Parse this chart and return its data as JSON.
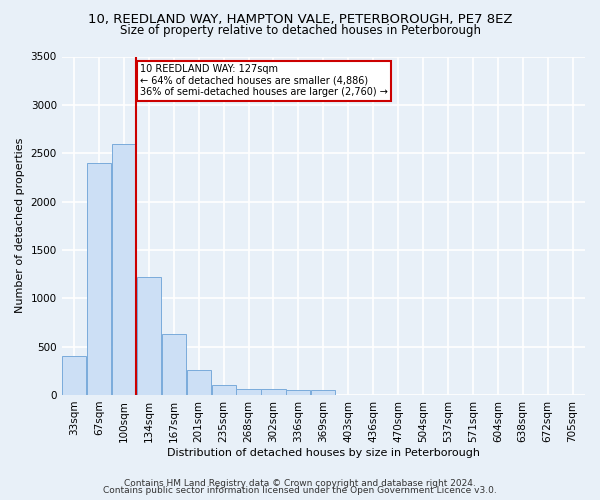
{
  "title_line1": "10, REEDLAND WAY, HAMPTON VALE, PETERBOROUGH, PE7 8EZ",
  "title_line2": "Size of property relative to detached houses in Peterborough",
  "xlabel": "Distribution of detached houses by size in Peterborough",
  "ylabel": "Number of detached properties",
  "footnote1": "Contains HM Land Registry data © Crown copyright and database right 2024.",
  "footnote2": "Contains public sector information licensed under the Open Government Licence v3.0.",
  "categories": [
    "33sqm",
    "67sqm",
    "100sqm",
    "134sqm",
    "167sqm",
    "201sqm",
    "235sqm",
    "268sqm",
    "302sqm",
    "336sqm",
    "369sqm",
    "403sqm",
    "436sqm",
    "470sqm",
    "504sqm",
    "537sqm",
    "571sqm",
    "604sqm",
    "638sqm",
    "672sqm",
    "705sqm"
  ],
  "values": [
    400,
    2400,
    2600,
    1220,
    630,
    260,
    100,
    65,
    65,
    50,
    50,
    0,
    0,
    0,
    0,
    0,
    0,
    0,
    0,
    0,
    0
  ],
  "bar_color": "#ccdff5",
  "bar_edge_color": "#7aabdb",
  "vline_position": 2.5,
  "vline_color": "#cc0000",
  "annotation_line1": "10 REEDLAND WAY: 127sqm",
  "annotation_line2": "← 64% of detached houses are smaller (4,886)",
  "annotation_line3": "36% of semi-detached houses are larger (2,760) →",
  "annotation_box_facecolor": "white",
  "annotation_box_edgecolor": "#cc0000",
  "ylim": [
    0,
    3500
  ],
  "yticks": [
    0,
    500,
    1000,
    1500,
    2000,
    2500,
    3000,
    3500
  ],
  "bg_color": "#e8f0f8",
  "plot_bg_color": "#e8f0f8",
  "grid_color": "white",
  "title_fontsize": 9.5,
  "subtitle_fontsize": 8.5,
  "axis_label_fontsize": 8,
  "tick_fontsize": 7.5,
  "footnote_fontsize": 6.5
}
